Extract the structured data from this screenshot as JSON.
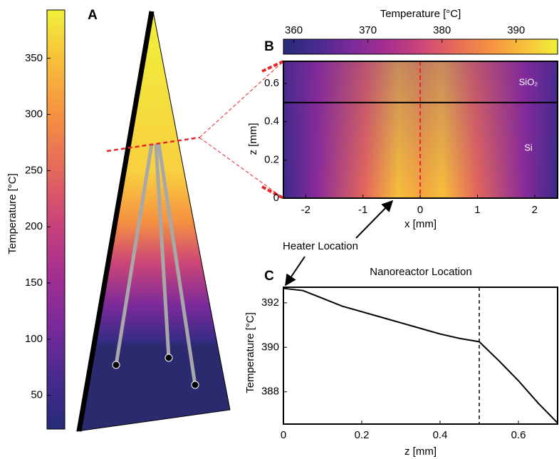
{
  "chart_data": [
    {
      "type": "colorbar",
      "ylabel": "Temperature [°C]",
      "ylim": [
        20,
        393
      ],
      "yticks": [
        50,
        100,
        150,
        200,
        250,
        300,
        350
      ],
      "colormap": [
        "#262a78",
        "#4a2a8f",
        "#7b2a9a",
        "#a62f8f",
        "#cc4578",
        "#e66a5a",
        "#f59141",
        "#f8bd3a",
        "#f0f03a"
      ]
    },
    {
      "type": "heatmap",
      "panel": "B",
      "colorbar_label": "Temperature [°C]",
      "colorbar_lim": [
        358.6,
        395.6
      ],
      "colorbar_ticks": [
        360,
        370,
        380,
        390
      ],
      "xlabel": "x [mm]",
      "ylabel": "z [mm]",
      "xlim": [
        -2.39,
        2.4
      ],
      "xticks": [
        -2,
        -1,
        0,
        1,
        2
      ],
      "ylim": [
        0,
        0.716
      ],
      "yticks": [
        0,
        0.2,
        0.4,
        0.6
      ],
      "layer_boundary": 0.5,
      "layer_labels": [
        "SiO₂",
        "Si"
      ],
      "section_line": 0
    },
    {
      "type": "line",
      "panel": "C",
      "xlabel": "z [mm]",
      "ylabel": "Temperature [°C]",
      "x": [
        0,
        0.05,
        0.1,
        0.15,
        0.2,
        0.25,
        0.3,
        0.35,
        0.4,
        0.45,
        0.5,
        0.55,
        0.6,
        0.65,
        0.7
      ],
      "values": [
        392.65,
        392.55,
        392.2,
        391.85,
        391.6,
        391.35,
        391.1,
        390.85,
        390.6,
        390.4,
        390.25,
        389.4,
        388.5,
        387.5,
        386.6
      ],
      "color": "#000000",
      "xlim": [
        0,
        0.7
      ],
      "xticks": [
        0,
        0.2,
        0.4,
        0.6
      ],
      "ylim": [
        386.55,
        392.7
      ],
      "yticks": [
        388,
        390,
        392
      ],
      "vline": 0.5,
      "vline_label": "Nanoreactor Location"
    }
  ],
  "panel_a": {
    "label": "A"
  },
  "annotation": "Heater Location"
}
